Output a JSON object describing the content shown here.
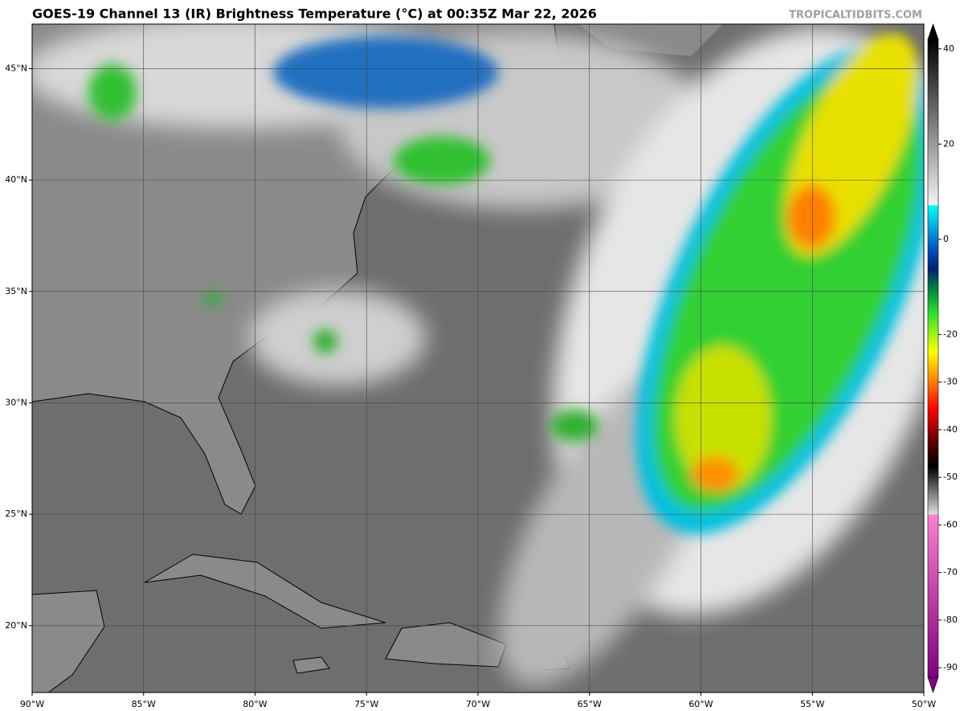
{
  "header": {
    "title": "GOES-19 Channel 13 (IR) Brightness Temperature (°C) at 00:35Z Mar 22, 2026",
    "watermark": "TROPICALTIDBITS.COM"
  },
  "map": {
    "xlim": [
      -90,
      -50
    ],
    "ylim": [
      17,
      47
    ],
    "xticks": [
      {
        "value": -90,
        "label": "90°W"
      },
      {
        "value": -85,
        "label": "85°W"
      },
      {
        "value": -80,
        "label": "80°W"
      },
      {
        "value": -75,
        "label": "75°W"
      },
      {
        "value": -70,
        "label": "70°W"
      },
      {
        "value": -65,
        "label": "65°W"
      },
      {
        "value": -60,
        "label": "60°W"
      },
      {
        "value": -55,
        "label": "55°W"
      },
      {
        "value": -50,
        "label": "50°W"
      }
    ],
    "yticks": [
      {
        "value": 20,
        "label": "20°N"
      },
      {
        "value": 25,
        "label": "25°N"
      },
      {
        "value": 30,
        "label": "30°N"
      },
      {
        "value": 35,
        "label": "35°N"
      },
      {
        "value": 40,
        "label": "40°N"
      },
      {
        "value": 45,
        "label": "45°N"
      }
    ]
  },
  "colorbar": {
    "lim": [
      -92,
      42
    ],
    "ticks": [
      40,
      20,
      0,
      -20,
      -30,
      -40,
      -50,
      -60,
      -70,
      -80,
      -90
    ]
  }
}
